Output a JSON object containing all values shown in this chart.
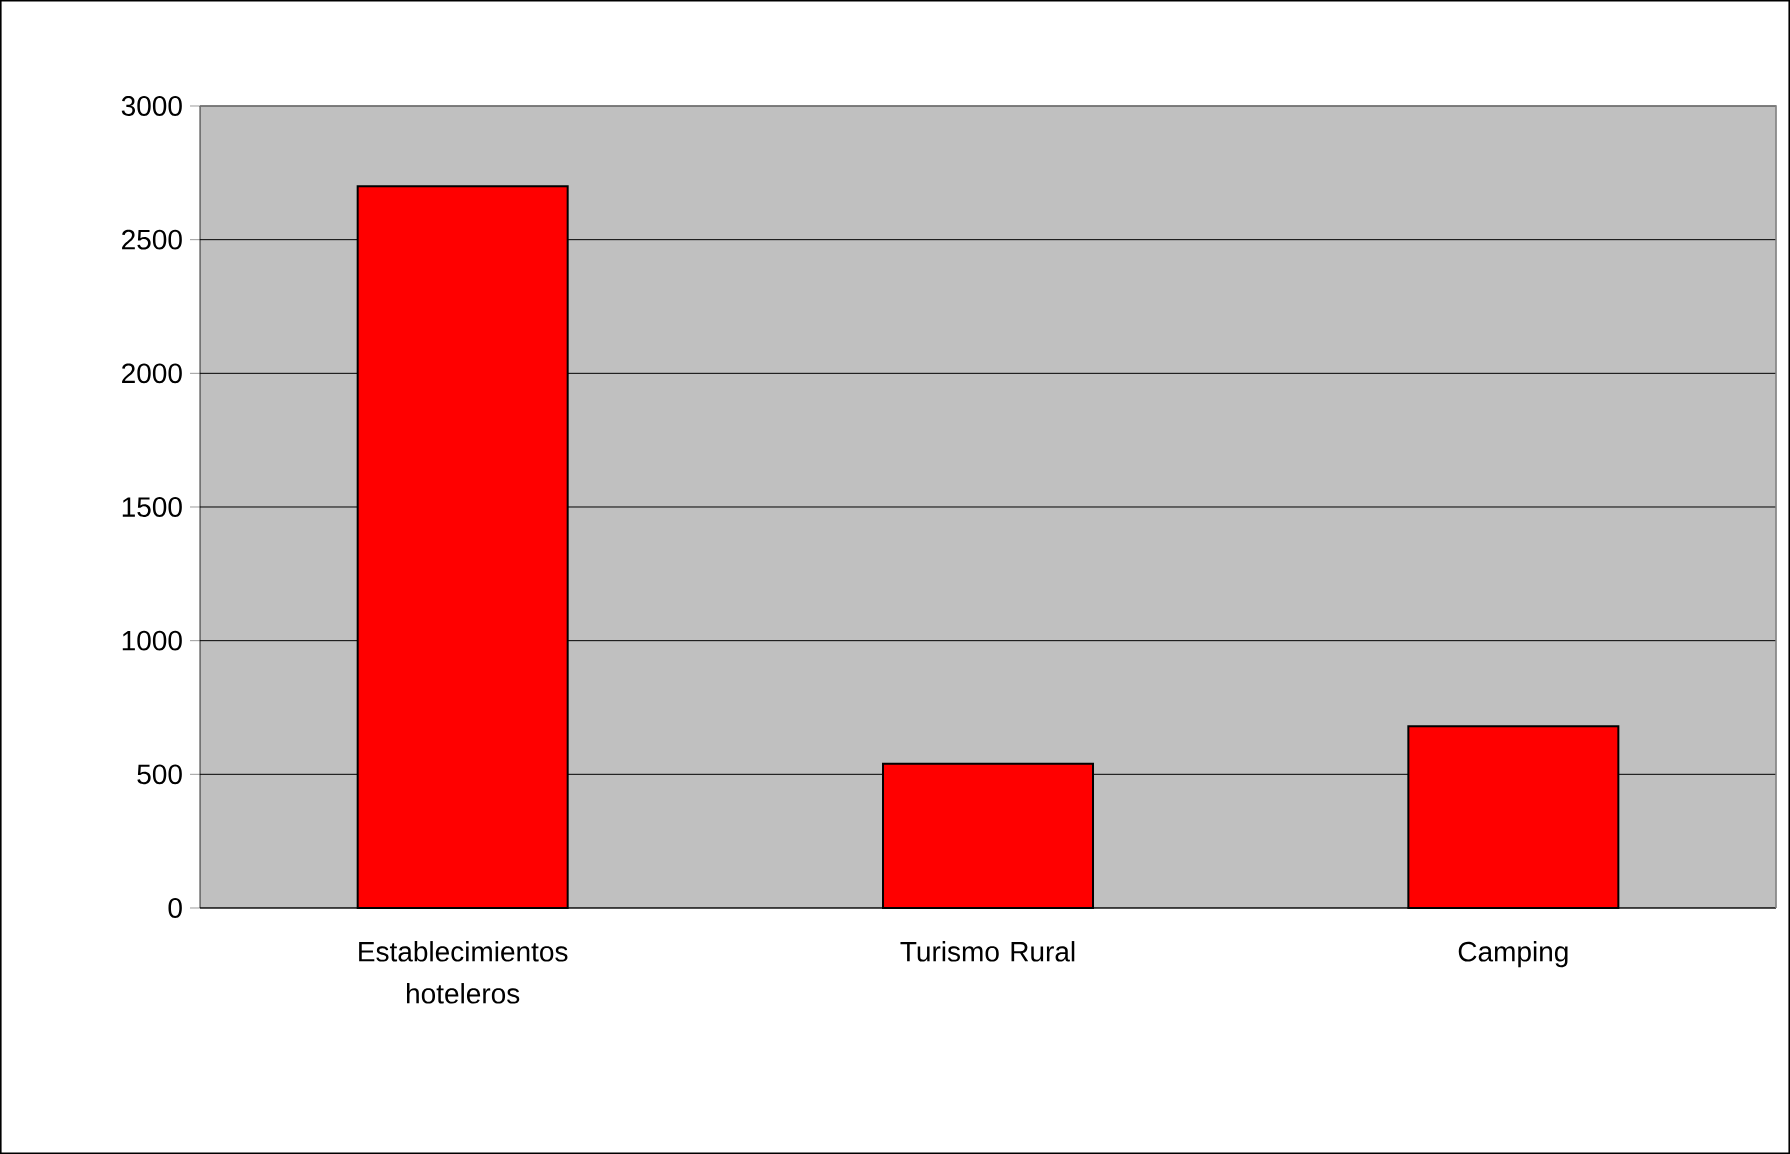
{
  "chart_data": {
    "type": "bar",
    "categories": [
      "Establecimientos hoteleros",
      "Turismo Rural",
      "Camping"
    ],
    "values": [
      2700,
      540,
      680
    ],
    "color": "#ff0000",
    "ylim": [
      0,
      3000
    ],
    "yticks": [
      0,
      500,
      1000,
      1500,
      2000,
      2500,
      3000
    ],
    "grid": "y"
  }
}
